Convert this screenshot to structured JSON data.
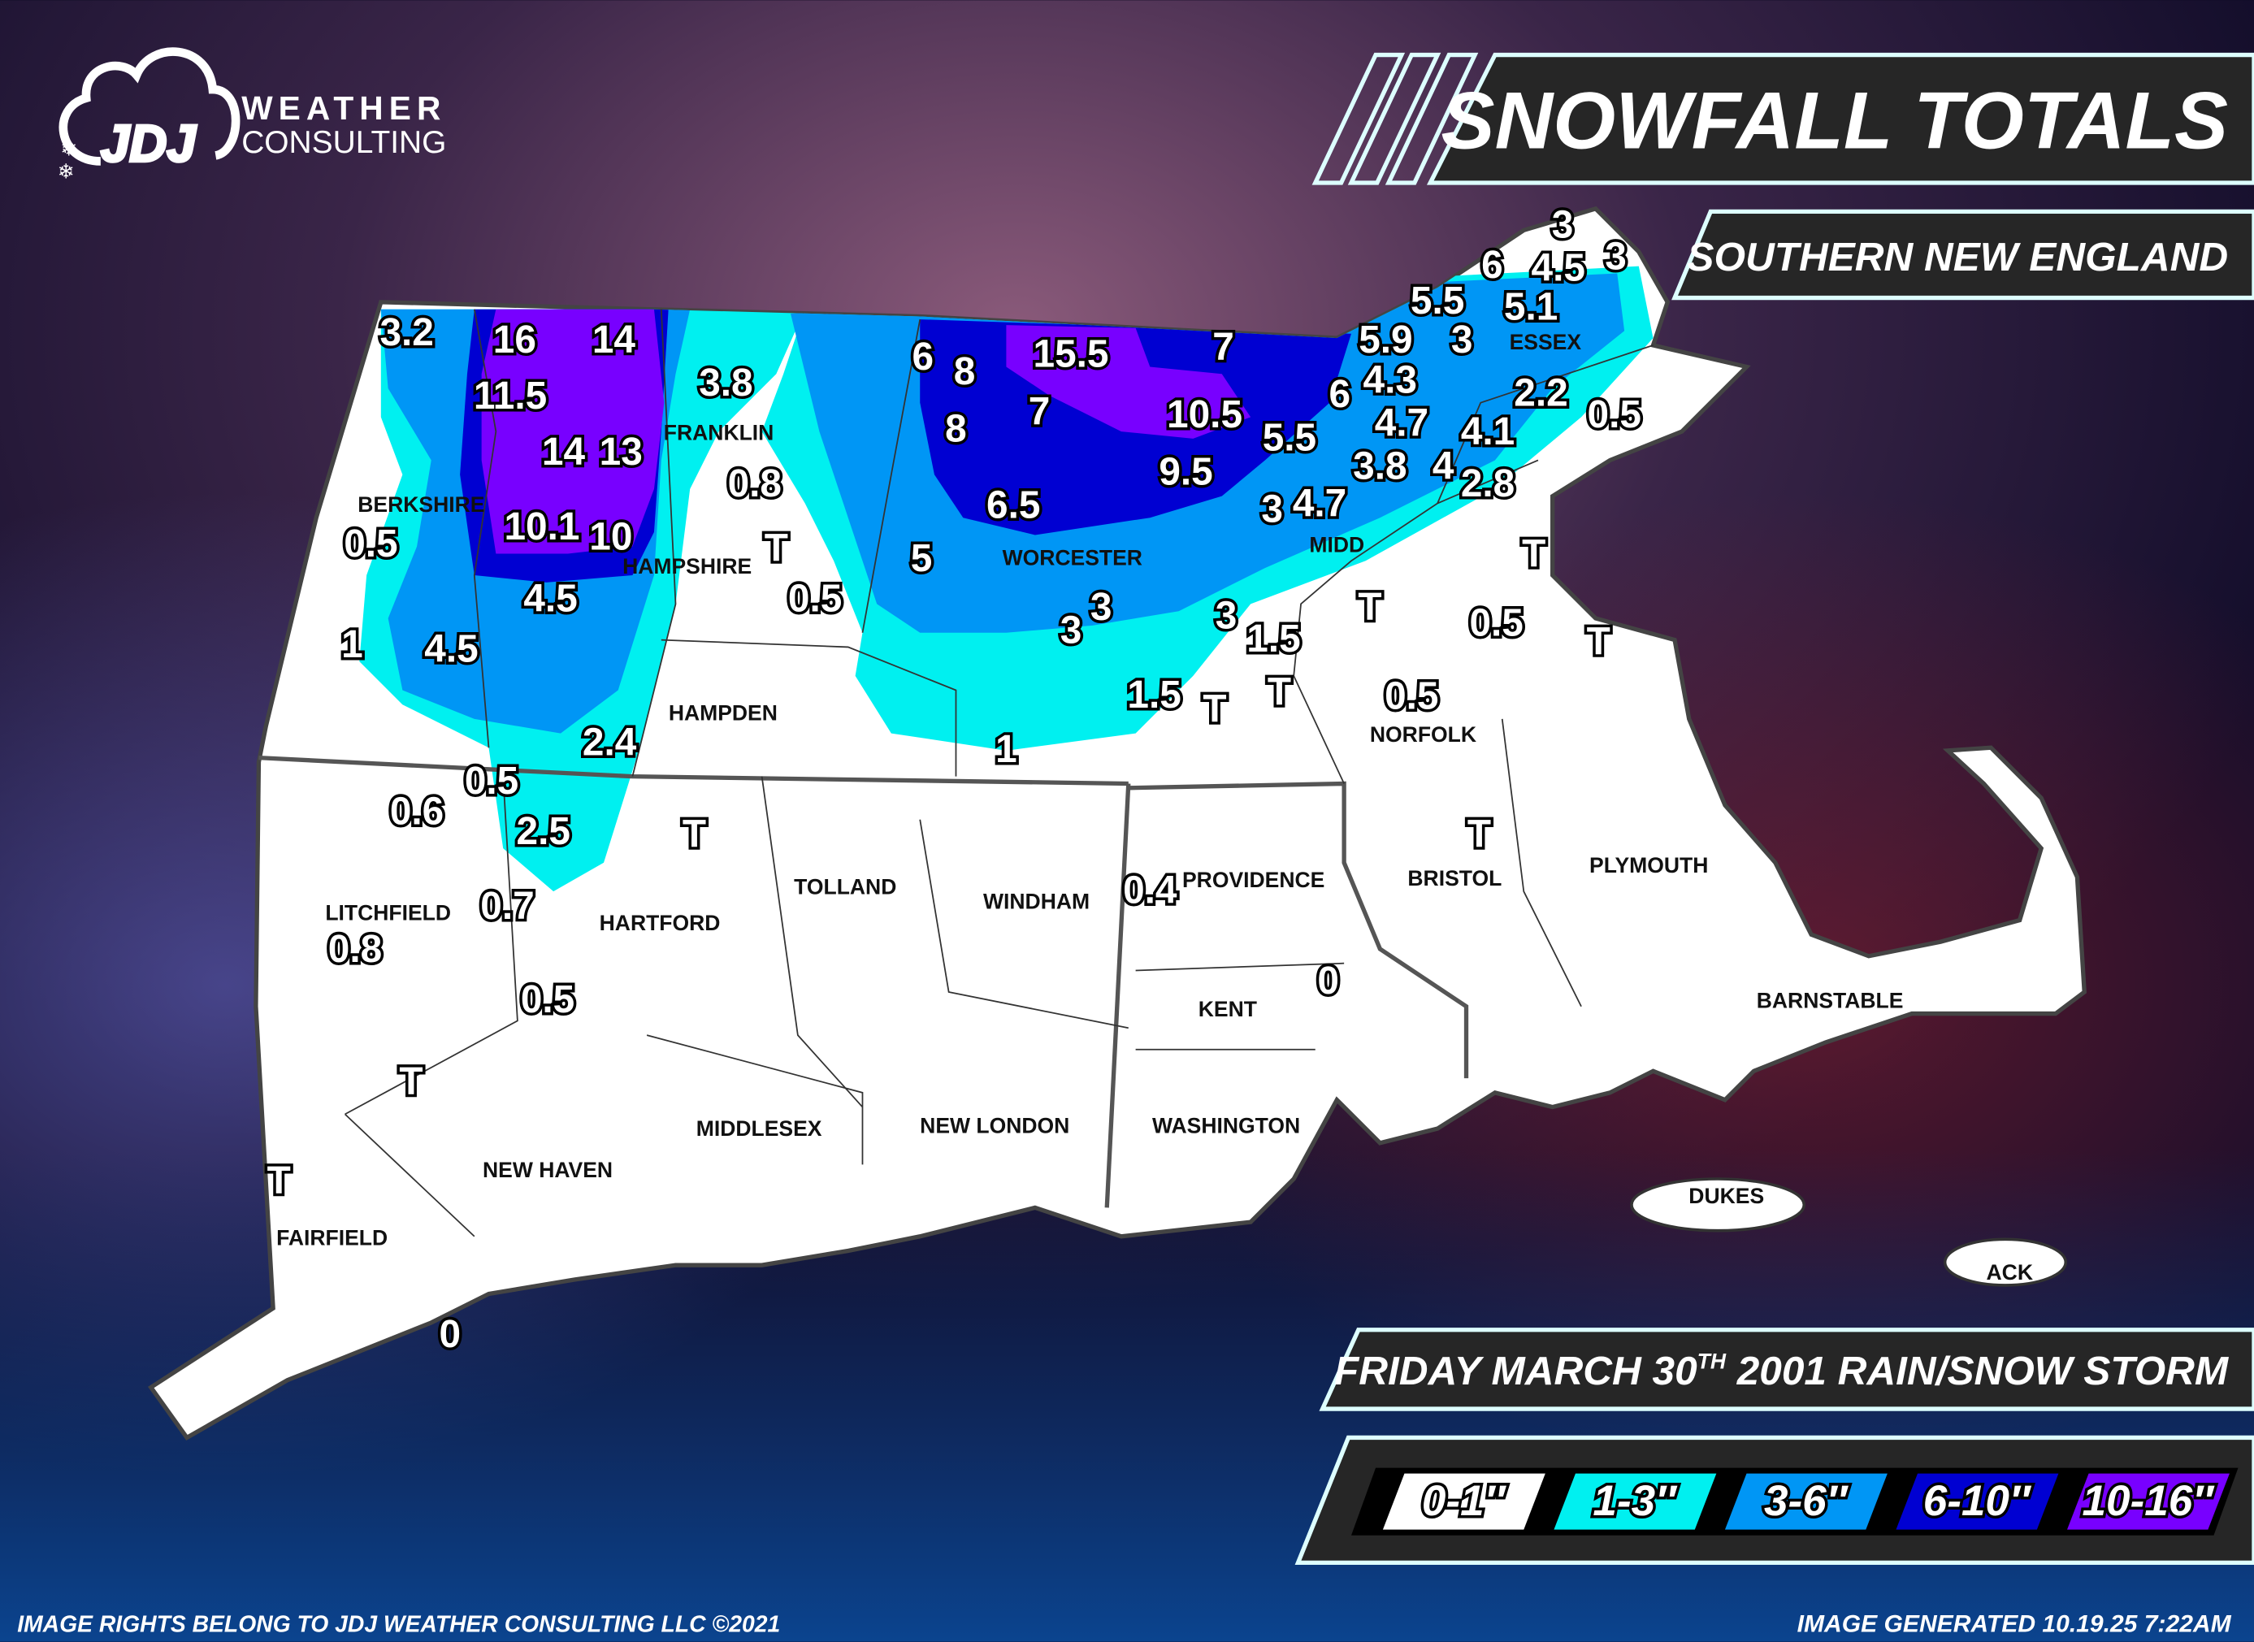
{
  "logo": {
    "brand": "JDJ",
    "line1": "WEATHER",
    "line2": "CONSULTING"
  },
  "header": {
    "title": "SNOWFALL TOTALS",
    "region": "SOUTHERN NEW ENGLAND"
  },
  "event": {
    "title_prefix": "FRIDAY MARCH 30",
    "title_sup": "TH",
    "title_suffix": " 2001 RAIN/SNOW STORM"
  },
  "legend": [
    {
      "label": "0-1″",
      "color": "#ffffff"
    },
    {
      "label": "1-3″",
      "color": "#00f0f0"
    },
    {
      "label": "3-6″",
      "color": "#0096f5"
    },
    {
      "label": "6-10″",
      "color": "#0000d2"
    },
    {
      "label": "10-16″",
      "color": "#7800ff"
    }
  ],
  "counties": [
    "BERKSHIRE",
    "FRANKLIN",
    "HAMPSHIRE",
    "HAMPDEN",
    "WORCESTER",
    "MIDD",
    "ESSEX",
    "NORFOLK",
    "BRISTOL",
    "PLYMOUTH",
    "BARNSTABLE",
    "DUKES",
    "ACK",
    "LITCHFIELD",
    "HARTFORD",
    "TOLLAND",
    "WINDHAM",
    "PROVIDENCE",
    "KENT",
    "WASHINGTON",
    "MIDDLESEX",
    "NEW LONDON",
    "NEW HAVEN",
    "FAIRFIELD"
  ],
  "observations": [
    "3.2",
    "16",
    "14",
    "11.5",
    "3.8",
    "14",
    "13",
    "0.8",
    "10.1",
    "10",
    "0.5",
    "T",
    "4.5",
    "0.5",
    "1",
    "4.5",
    "6",
    "8",
    "15.5",
    "7",
    "8",
    "7",
    "10.5",
    "9.5",
    "6.5",
    "5",
    "3",
    "3",
    "3",
    "1.5",
    "1.5",
    "T",
    "T",
    "1",
    "2.4",
    "0.5",
    "0.6",
    "2.5",
    "T",
    "0.7",
    "0.8",
    "0.5",
    "T",
    "T",
    "0",
    "0.4",
    "0",
    "T",
    "0.5",
    "T",
    "0.5",
    "T",
    "T",
    "5.5",
    "3",
    "4.7",
    "3.8",
    "4",
    "4.1",
    "2.8",
    "4.7",
    "6",
    "4.3",
    "5.9",
    "3",
    "5.5",
    "5.1",
    "6",
    "4.5",
    "3",
    "3",
    "2.2",
    "0.5"
  ],
  "footer": {
    "left": "IMAGE RIGHTS BELONG TO JDJ WEATHER CONSULTING LLC ©2021",
    "right": "IMAGE GENERATED 10.19.25 7:22AM"
  }
}
